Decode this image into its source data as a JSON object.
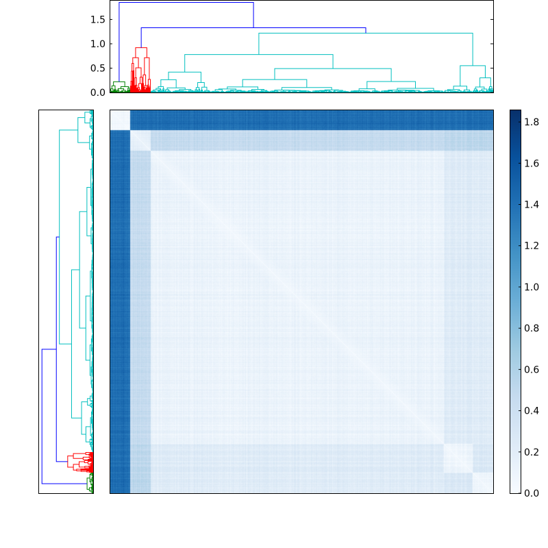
{
  "chart_data": {
    "type": "heatmap",
    "description_components": [
      "top-dendrogram",
      "left-dendrogram",
      "distance-matrix-heatmap",
      "colorbar"
    ],
    "colormap": "Blues",
    "colormap_stops": [
      "#f7fbff",
      "#deebf7",
      "#c6dbef",
      "#9ecae1",
      "#6baed6",
      "#4292c6",
      "#2171b5",
      "#08519c",
      "#08306b"
    ],
    "value_range": [
      0,
      1.85
    ],
    "matrix": {
      "n_leaves": 560,
      "cluster_boundaries": [
        0,
        30,
        60,
        488,
        530,
        560
      ],
      "cluster_names": [
        "green",
        "red",
        "cyan-main",
        "cyan-mid",
        "cyan-right"
      ],
      "block_values": [
        [
          0.05,
          1.4,
          1.4,
          1.4,
          1.4
        ],
        [
          1.4,
          0.2,
          0.45,
          0.5,
          0.5
        ],
        [
          1.4,
          0.45,
          0.12,
          0.22,
          0.2
        ],
        [
          1.4,
          0.5,
          0.22,
          0.1,
          0.25
        ],
        [
          1.4,
          0.5,
          0.2,
          0.25,
          0.08
        ]
      ]
    },
    "top_dendrogram": {
      "yticks": [
        "0.0",
        "0.5",
        "1.0",
        "1.5"
      ],
      "ylim": [
        0,
        1.9
      ],
      "link_colors": {
        "green": "#008000",
        "red": "#ff0000",
        "cyan": "#00bfbf",
        "blue": "#0000ff"
      },
      "root_heights": {
        "root": 1.85,
        "second": 1.33,
        "third": 1.3,
        "cyan_root": 1.22,
        "red_root": 0.92,
        "green_root": 0.22
      }
    },
    "colorbar": {
      "ticks": [
        "0.0",
        "0.2",
        "0.4",
        "0.6",
        "0.8",
        "1.0",
        "1.2",
        "1.4",
        "1.6",
        "1.8"
      ],
      "tick_values": [
        0.0,
        0.2,
        0.4,
        0.6,
        0.8,
        1.0,
        1.2,
        1.4,
        1.6,
        1.8
      ],
      "range": [
        0,
        1.86
      ]
    }
  }
}
